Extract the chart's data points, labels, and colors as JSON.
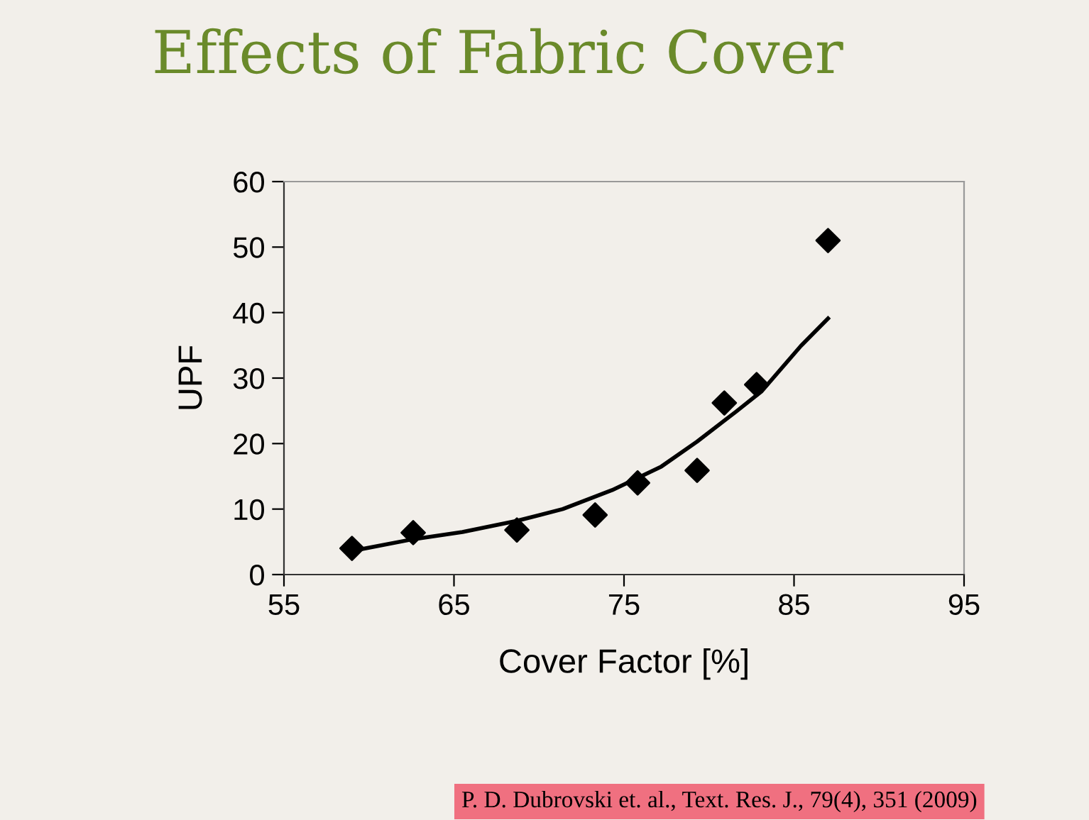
{
  "chart_data": {
    "type": "scatter",
    "title": "Effects of Fabric Cover",
    "xlabel": "Cover Factor [%]",
    "ylabel": "UPF",
    "series": [
      {
        "color": "#000000",
        "marker": "diamond",
        "x": [
          59.0,
          62.6,
          68.7,
          73.3,
          75.8,
          79.3,
          80.9,
          82.8,
          87.0
        ],
        "values": [
          4.0,
          6.4,
          6.8,
          9.1,
          14.0,
          15.9,
          26.2,
          29.0,
          51.0
        ]
      },
      {
        "type": "line",
        "color": "#000000",
        "line_style": "solid",
        "x": [
          59.0,
          62.6,
          65.5,
          68.7,
          71.4,
          74.3,
          77.2,
          79.3,
          81.6,
          83.1,
          85.4,
          87.0
        ],
        "values": [
          3.6,
          5.4,
          6.5,
          8.2,
          10.0,
          12.9,
          16.5,
          20.3,
          24.9,
          28.0,
          34.9,
          39.1
        ]
      }
    ],
    "xlim": [
      55,
      95
    ],
    "xticks": [
      55,
      65,
      75,
      85,
      95
    ],
    "ylim": [
      0,
      60
    ],
    "yticks": [
      0,
      10,
      20,
      30,
      40,
      50,
      60
    ],
    "grid": false,
    "annotations": [
      "P. D. Dubrovski et. al., Text. Res. J., 79(4), 351 (2009)"
    ]
  }
}
